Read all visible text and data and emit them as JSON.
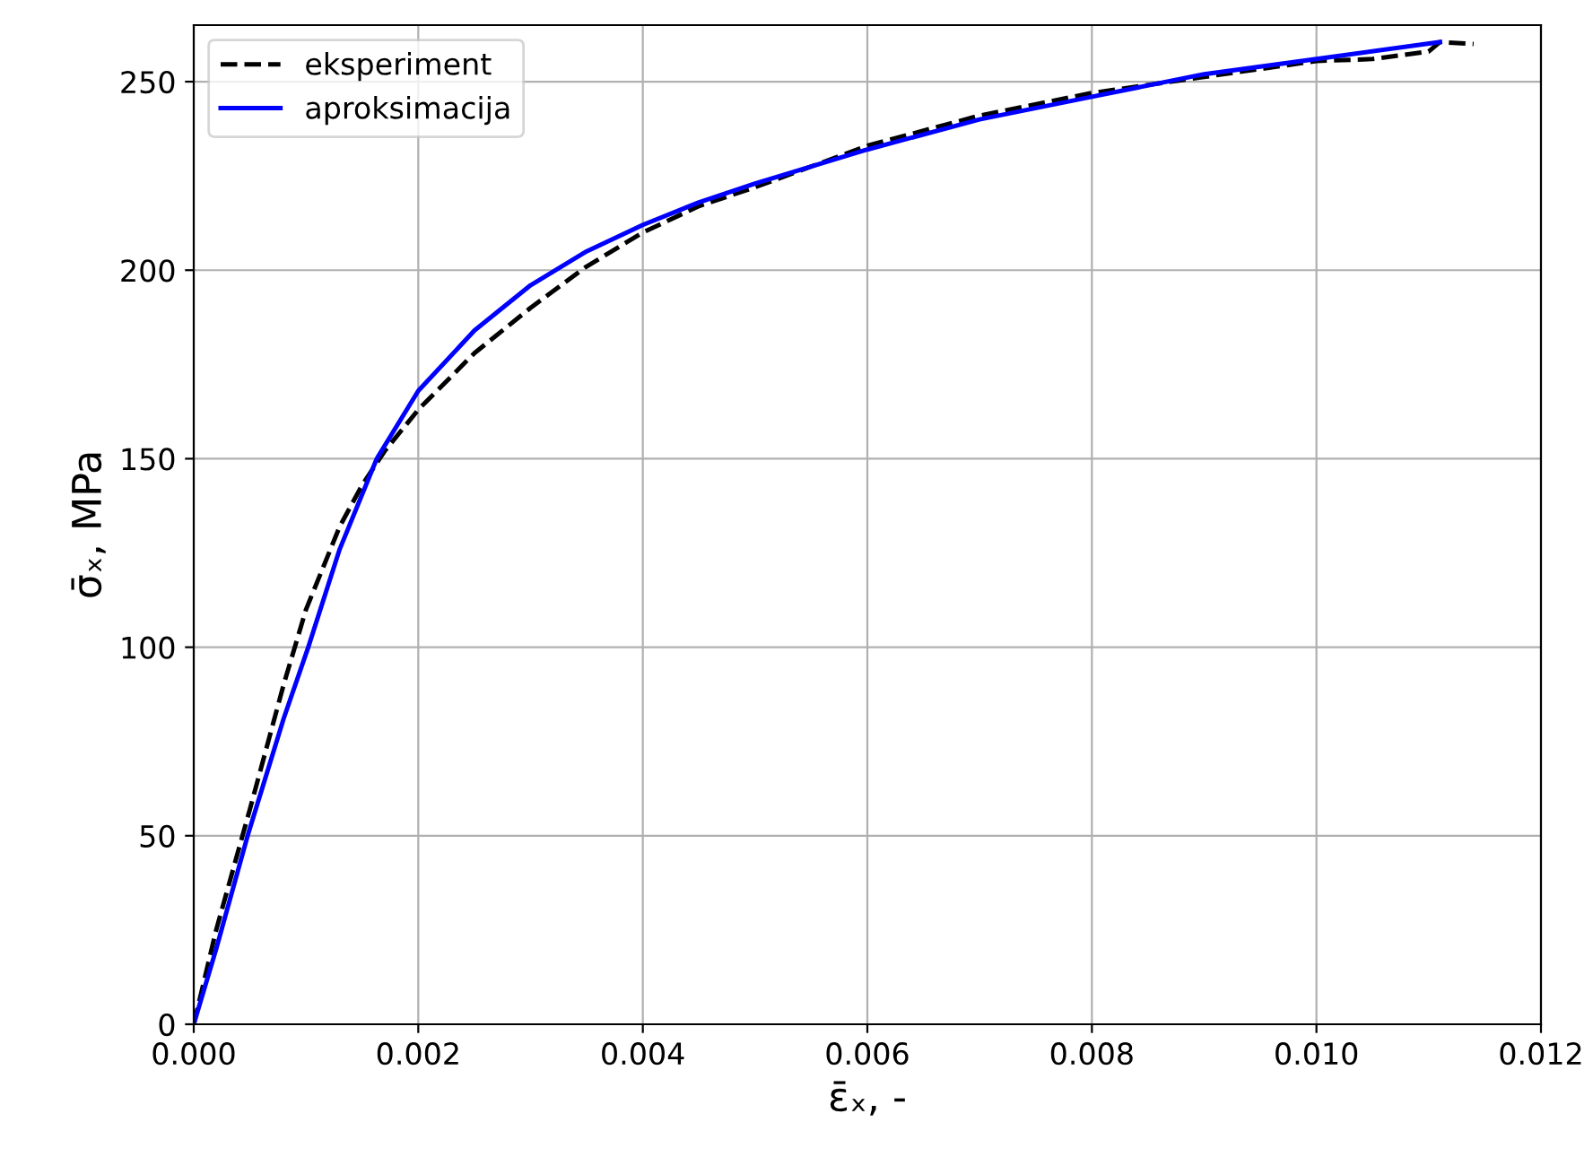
{
  "chart_data": {
    "type": "line",
    "xlabel": "ε̄ₓ, -",
    "ylabel": "σ̄ₓ, MPa",
    "xlim": [
      0,
      0.012
    ],
    "xticks": [
      {
        "value": 0,
        "label": "0.000"
      },
      {
        "value": 0.002,
        "label": "0.002"
      },
      {
        "value": 0.004,
        "label": "0.004"
      },
      {
        "value": 0.006,
        "label": "0.006"
      },
      {
        "value": 0.008,
        "label": "0.008"
      },
      {
        "value": 0.01,
        "label": "0.010"
      },
      {
        "value": 0.012,
        "label": "0.012"
      }
    ],
    "ylim": [
      0,
      265
    ],
    "yticks": [
      0,
      50,
      100,
      150,
      200,
      250
    ],
    "grid": true,
    "legend": "top left",
    "series": [
      {
        "name": "eksperiment",
        "color": "#000000",
        "line_style": "dashed",
        "x": [
          0,
          0.0002,
          0.0005,
          0.0008,
          0.001,
          0.0013,
          0.0015,
          0.0017,
          0.002,
          0.0025,
          0.003,
          0.0035,
          0.004,
          0.0045,
          0.005,
          0.006,
          0.007,
          0.008,
          0.01,
          0.0105,
          0.011,
          0.0111,
          0.0114
        ],
        "values": [
          0,
          25,
          57,
          90,
          110,
          132,
          143,
          152,
          163,
          178,
          190,
          201,
          210,
          217,
          222,
          233,
          241,
          247,
          255.5,
          256,
          258,
          260.5,
          260
        ]
      },
      {
        "name": "aproksimacija",
        "color": "#0000ff",
        "line_style": "solid",
        "x": [
          0,
          0.0002,
          0.00048,
          0.0008,
          0.00102,
          0.0013,
          0.00163,
          0.002,
          0.0025,
          0.003,
          0.0035,
          0.004,
          0.0045,
          0.005,
          0.006,
          0.007,
          0.008,
          0.009,
          0.01,
          0.0111
        ],
        "values": [
          0,
          20,
          50,
          81,
          100,
          126,
          150,
          168,
          184,
          196,
          205,
          212,
          218,
          223,
          232,
          240,
          246,
          252,
          256,
          260.5
        ]
      }
    ]
  }
}
